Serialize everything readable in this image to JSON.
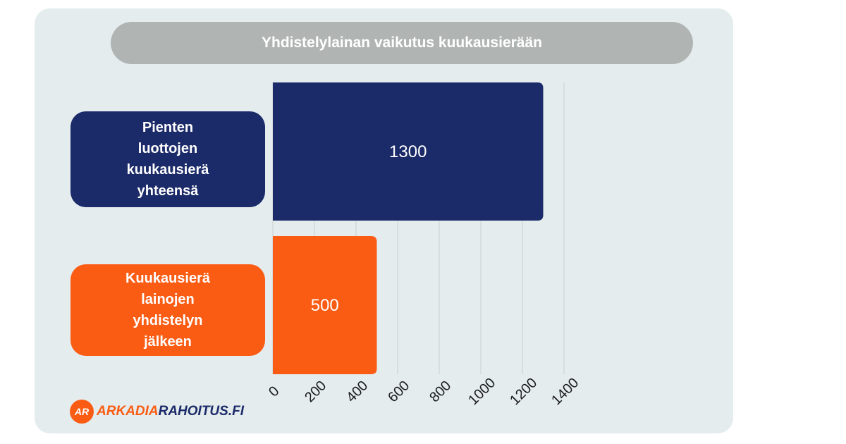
{
  "colors": {
    "card_bg": "#e4ecee",
    "title_bg": "#b0b5b4",
    "navy": "#1b2a68",
    "orange": "#fa5c13",
    "grid": "#c9cfd2",
    "tick_text": "#1a1a1a"
  },
  "chart_data": {
    "type": "bar",
    "orientation": "horizontal",
    "title": "Yhdistelylainan vaikutus kuukausierään",
    "categories": [
      "Pienten luottojen kuukausierä yhteensä",
      "Kuukausierä lainojen yhdistelyn jälkeen"
    ],
    "values": [
      1300,
      500
    ],
    "data_labels": [
      "1300",
      "500"
    ],
    "bar_colors": [
      "#1b2a68",
      "#fa5c13"
    ],
    "xlim": [
      0,
      1400
    ],
    "x_ticks": [
      "0",
      "200",
      "400",
      "600",
      "800",
      "1000",
      "1200",
      "1400"
    ],
    "grid": true,
    "legend": "none"
  },
  "logo": {
    "badge": "AR",
    "word1": "ARKADIA",
    "word2": "RAHOITUS.FI"
  }
}
